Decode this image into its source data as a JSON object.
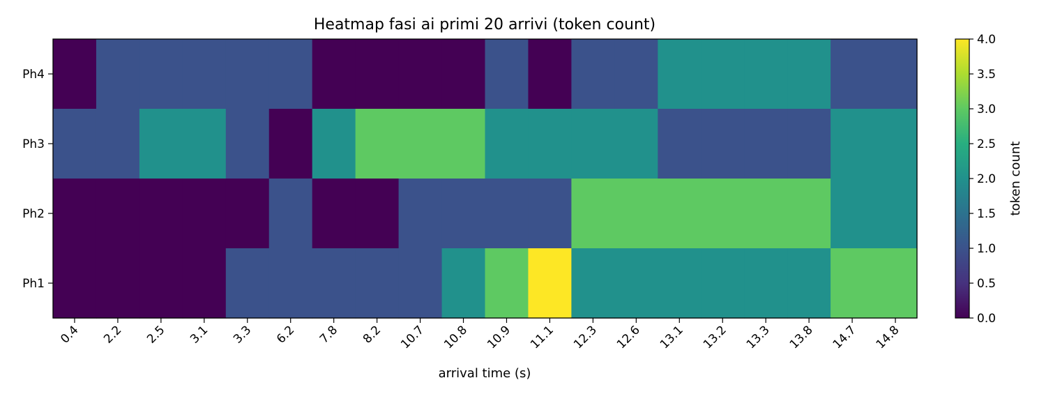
{
  "chart_data": {
    "type": "heatmap",
    "title": "Heatmap fasi ai primi 20 arrivi (token count)",
    "xlabel": "arrival time (s)",
    "ylabel": "",
    "x_categories": [
      "0.4",
      "2.2",
      "2.5",
      "3.1",
      "3.3",
      "6.2",
      "7.8",
      "8.2",
      "10.7",
      "10.8",
      "10.9",
      "11.1",
      "12.3",
      "12.6",
      "13.1",
      "13.2",
      "13.3",
      "13.8",
      "14.7",
      "14.8"
    ],
    "y_categories": [
      "Ph4",
      "Ph3",
      "Ph2",
      "Ph1"
    ],
    "values": [
      [
        0,
        1,
        1,
        1,
        1,
        1,
        0,
        0,
        0,
        0,
        1,
        0,
        1,
        1,
        2,
        2,
        2,
        2,
        1,
        1
      ],
      [
        1,
        1,
        2,
        2,
        1,
        0,
        2,
        3,
        3,
        3,
        2,
        2,
        2,
        2,
        1,
        1,
        1,
        1,
        2,
        2
      ],
      [
        0,
        0,
        0,
        0,
        0,
        1,
        0,
        0,
        1,
        1,
        1,
        1,
        3,
        3,
        3,
        3,
        3,
        3,
        2,
        2
      ],
      [
        0,
        0,
        0,
        0,
        1,
        1,
        1,
        1,
        1,
        2,
        3,
        4,
        2,
        2,
        2,
        2,
        2,
        2,
        3,
        3
      ]
    ],
    "colorbar": {
      "label": "token count",
      "min": 0.0,
      "max": 4.0,
      "ticks": [
        "0.0",
        "0.5",
        "1.0",
        "1.5",
        "2.0",
        "2.5",
        "3.0",
        "3.5",
        "4.0"
      ],
      "colormap": "viridis",
      "colors": {
        "0": "#440154",
        "1": "#3b528b",
        "2": "#21918c",
        "3": "#5ec962",
        "4": "#fde725"
      }
    },
    "grid": false,
    "legend": "colorbar-right"
  }
}
